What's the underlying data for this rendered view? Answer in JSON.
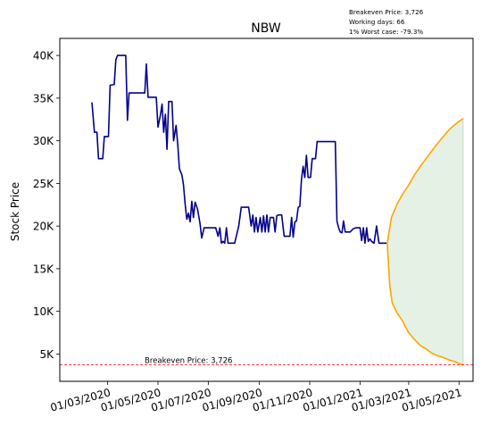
{
  "chart_data": {
    "type": "line",
    "title": "NBW",
    "ylabel": "Stock Price",
    "xlabel": "",
    "info_lines": [
      "Breakeven Price: 3,726",
      "Working days: 66",
      "1% Worst case: -79.3%"
    ],
    "breakeven": {
      "value": 3726,
      "label": "Breakeven Price: 3,726",
      "color": "#ff0000"
    },
    "ylim": [
      1800,
      42000
    ],
    "xlim": [
      "2020-01-03",
      "2021-05-18"
    ],
    "y_ticks": [
      {
        "value": 5000,
        "label": "5K"
      },
      {
        "value": 10000,
        "label": "10K"
      },
      {
        "value": 15000,
        "label": "15K"
      },
      {
        "value": 20000,
        "label": "20K"
      },
      {
        "value": 25000,
        "label": "25K"
      },
      {
        "value": 30000,
        "label": "30K"
      },
      {
        "value": 35000,
        "label": "35K"
      },
      {
        "value": 40000,
        "label": "40K"
      }
    ],
    "x_ticks": [
      {
        "date": "2020-03-01",
        "label": "01/03/2020"
      },
      {
        "date": "2020-05-01",
        "label": "01/05/2020"
      },
      {
        "date": "2020-07-01",
        "label": "01/07/2020"
      },
      {
        "date": "2020-09-01",
        "label": "01/09/2020"
      },
      {
        "date": "2020-11-01",
        "label": "01/11/2020"
      },
      {
        "date": "2021-01-01",
        "label": "01/01/2021"
      },
      {
        "date": "2021-03-01",
        "label": "01/03/2021"
      },
      {
        "date": "2021-05-01",
        "label": "01/05/2021"
      }
    ],
    "series": [
      {
        "color": "#00008b",
        "points": [
          [
            "2020-02-11",
            34500
          ],
          [
            "2020-02-14",
            31000
          ],
          [
            "2020-02-17",
            31000
          ],
          [
            "2020-02-19",
            27900
          ],
          [
            "2020-02-24",
            27900
          ],
          [
            "2020-02-26",
            30500
          ],
          [
            "2020-03-02",
            30500
          ],
          [
            "2020-03-04",
            36500
          ],
          [
            "2020-03-09",
            36600
          ],
          [
            "2020-03-11",
            39500
          ],
          [
            "2020-03-13",
            40000
          ],
          [
            "2020-03-23",
            40000
          ],
          [
            "2020-03-25",
            32400
          ],
          [
            "2020-03-27",
            35600
          ],
          [
            "2020-04-15",
            35600
          ],
          [
            "2020-04-17",
            39000
          ],
          [
            "2020-04-19",
            35100
          ],
          [
            "2020-04-29",
            35100
          ],
          [
            "2020-05-01",
            31600
          ],
          [
            "2020-05-04",
            33000
          ],
          [
            "2020-05-06",
            34300
          ],
          [
            "2020-05-08",
            31000
          ],
          [
            "2020-05-10",
            33100
          ],
          [
            "2020-05-12",
            29000
          ],
          [
            "2020-05-14",
            34600
          ],
          [
            "2020-05-18",
            34600
          ],
          [
            "2020-05-20",
            30000
          ],
          [
            "2020-05-23",
            31800
          ],
          [
            "2020-05-25",
            29500
          ],
          [
            "2020-05-27",
            26700
          ],
          [
            "2020-05-30",
            26000
          ],
          [
            "2020-06-01",
            24800
          ],
          [
            "2020-06-03",
            22500
          ],
          [
            "2020-06-05",
            20800
          ],
          [
            "2020-06-07",
            21500
          ],
          [
            "2020-06-09",
            20500
          ],
          [
            "2020-06-11",
            22900
          ],
          [
            "2020-06-13",
            21000
          ],
          [
            "2020-06-15",
            22800
          ],
          [
            "2020-06-18",
            22000
          ],
          [
            "2020-06-21",
            20300
          ],
          [
            "2020-06-23",
            18600
          ],
          [
            "2020-06-26",
            19800
          ],
          [
            "2020-07-10",
            19800
          ],
          [
            "2020-07-13",
            18800
          ],
          [
            "2020-07-15",
            19800
          ],
          [
            "2020-07-17",
            18000
          ],
          [
            "2020-07-19",
            18200
          ],
          [
            "2020-07-21",
            18000
          ],
          [
            "2020-07-23",
            19800
          ],
          [
            "2020-07-25",
            18000
          ],
          [
            "2020-08-02",
            18000
          ],
          [
            "2020-08-07",
            20000
          ],
          [
            "2020-08-10",
            22200
          ],
          [
            "2020-08-19",
            22200
          ],
          [
            "2020-08-22",
            20000
          ],
          [
            "2020-08-24",
            21300
          ],
          [
            "2020-08-26",
            19300
          ],
          [
            "2020-08-28",
            21000
          ],
          [
            "2020-08-30",
            19300
          ],
          [
            "2020-09-02",
            21000
          ],
          [
            "2020-09-04",
            19300
          ],
          [
            "2020-09-06",
            21200
          ],
          [
            "2020-09-08",
            19300
          ],
          [
            "2020-09-10",
            21300
          ],
          [
            "2020-09-12",
            19300
          ],
          [
            "2020-09-14",
            21000
          ],
          [
            "2020-09-18",
            21000
          ],
          [
            "2020-09-20",
            19300
          ],
          [
            "2020-09-22",
            21200
          ],
          [
            "2020-09-24",
            21300
          ],
          [
            "2020-09-28",
            21300
          ],
          [
            "2020-10-01",
            18800
          ],
          [
            "2020-10-08",
            18800
          ],
          [
            "2020-10-10",
            21000
          ],
          [
            "2020-10-12",
            18700
          ],
          [
            "2020-10-14",
            20500
          ],
          [
            "2020-10-16",
            20600
          ],
          [
            "2020-10-18",
            22200
          ],
          [
            "2020-10-20",
            22300
          ],
          [
            "2020-10-22",
            25500
          ],
          [
            "2020-10-24",
            27000
          ],
          [
            "2020-10-26",
            25700
          ],
          [
            "2020-10-28",
            28300
          ],
          [
            "2020-10-30",
            25700
          ],
          [
            "2020-11-02",
            25700
          ],
          [
            "2020-11-04",
            27900
          ],
          [
            "2020-11-08",
            27900
          ],
          [
            "2020-11-10",
            29900
          ],
          [
            "2020-12-02",
            29900
          ],
          [
            "2020-12-04",
            20600
          ],
          [
            "2020-12-06",
            19800
          ],
          [
            "2020-12-08",
            19300
          ],
          [
            "2020-12-10",
            19200
          ],
          [
            "2020-12-12",
            20600
          ],
          [
            "2020-12-14",
            19300
          ],
          [
            "2020-12-20",
            19300
          ],
          [
            "2020-12-24",
            19700
          ],
          [
            "2020-12-27",
            19800
          ],
          [
            "2021-01-01",
            19800
          ],
          [
            "2021-01-03",
            18300
          ],
          [
            "2021-01-05",
            19800
          ],
          [
            "2021-01-07",
            18000
          ],
          [
            "2021-01-09",
            19800
          ],
          [
            "2021-01-11",
            18200
          ],
          [
            "2021-01-13",
            18500
          ],
          [
            "2021-01-15",
            18200
          ],
          [
            "2021-01-18",
            18000
          ],
          [
            "2021-01-21",
            20000
          ],
          [
            "2021-01-24",
            18000
          ],
          [
            "2021-02-02",
            18000
          ]
        ]
      },
      {
        "color": "#ffa500",
        "points": [
          [
            "2021-02-03",
            18000
          ],
          [
            "2021-02-08",
            21000
          ],
          [
            "2021-02-15",
            22600
          ],
          [
            "2021-02-22",
            23800
          ],
          [
            "2021-03-01",
            24800
          ],
          [
            "2021-03-08",
            26000
          ],
          [
            "2021-03-15",
            27000
          ],
          [
            "2021-03-22",
            27900
          ],
          [
            "2021-03-29",
            28800
          ],
          [
            "2021-04-05",
            29700
          ],
          [
            "2021-04-12",
            30500
          ],
          [
            "2021-04-19",
            31300
          ],
          [
            "2021-04-26",
            31900
          ],
          [
            "2021-05-03",
            32400
          ],
          [
            "2021-05-06",
            32600
          ]
        ]
      },
      {
        "color": "#ffa500",
        "points": [
          [
            "2021-02-03",
            18000
          ],
          [
            "2021-02-06",
            13000
          ],
          [
            "2021-02-09",
            11000
          ],
          [
            "2021-02-15",
            9800
          ],
          [
            "2021-02-22",
            8800
          ],
          [
            "2021-03-01",
            7500
          ],
          [
            "2021-03-08",
            6700
          ],
          [
            "2021-03-15",
            6000
          ],
          [
            "2021-03-22",
            5600
          ],
          [
            "2021-03-29",
            5100
          ],
          [
            "2021-04-05",
            4800
          ],
          [
            "2021-04-12",
            4600
          ],
          [
            "2021-04-19",
            4300
          ],
          [
            "2021-04-26",
            4100
          ],
          [
            "2021-05-03",
            3800
          ],
          [
            "2021-05-06",
            3726
          ]
        ]
      }
    ],
    "fill_between": {
      "color": "#2e8b2e",
      "opacity": 0.12
    }
  }
}
